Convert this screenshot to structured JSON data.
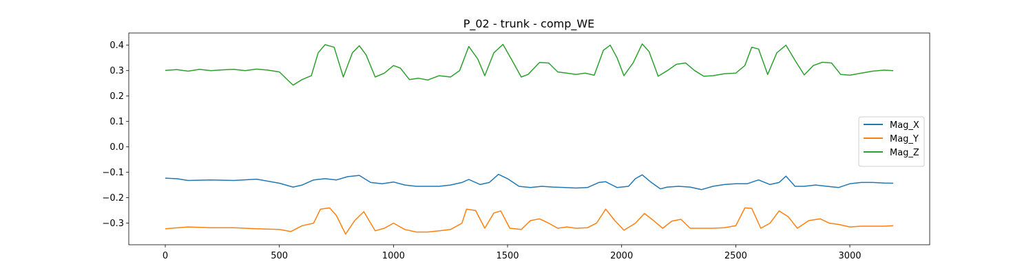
{
  "chart_data": {
    "type": "line",
    "title": "P_02 - trunk - comp_WE",
    "xlabel": "",
    "ylabel": "",
    "xlim": [
      -160,
      3350
    ],
    "ylim": [
      -0.385,
      0.448
    ],
    "x_ticks": [
      0,
      500,
      1000,
      1500,
      2000,
      2500,
      3000
    ],
    "y_ticks": [
      -0.3,
      -0.2,
      -0.1,
      0.0,
      0.1,
      0.2,
      0.3,
      0.4
    ],
    "x_tick_labels": [
      "0",
      "500",
      "1000",
      "1500",
      "2000",
      "2500",
      "3000"
    ],
    "y_tick_labels": [
      "−0.3",
      "−0.2",
      "−0.1",
      "0.0",
      "0.1",
      "0.2",
      "0.3",
      "0.4"
    ],
    "grid": false,
    "legend_position": "center-right",
    "series": [
      {
        "name": "Mag_X",
        "color": "#1f77b4",
        "x": [
          0,
          50,
          100,
          200,
          300,
          400,
          500,
          560,
          600,
          650,
          700,
          750,
          800,
          850,
          900,
          950,
          1000,
          1050,
          1100,
          1150,
          1200,
          1250,
          1300,
          1330,
          1380,
          1420,
          1460,
          1500,
          1550,
          1600,
          1650,
          1700,
          1750,
          1800,
          1850,
          1900,
          1930,
          1980,
          2030,
          2060,
          2090,
          2130,
          2170,
          2200,
          2250,
          2300,
          2350,
          2400,
          2450,
          2500,
          2550,
          2600,
          2650,
          2690,
          2720,
          2760,
          2800,
          2850,
          2900,
          2950,
          3000,
          3050,
          3100,
          3150,
          3190
        ],
        "y": [
          -0.123,
          -0.125,
          -0.132,
          -0.13,
          -0.132,
          -0.127,
          -0.143,
          -0.158,
          -0.15,
          -0.13,
          -0.125,
          -0.13,
          -0.117,
          -0.112,
          -0.14,
          -0.145,
          -0.138,
          -0.15,
          -0.155,
          -0.155,
          -0.155,
          -0.15,
          -0.14,
          -0.128,
          -0.148,
          -0.14,
          -0.108,
          -0.125,
          -0.155,
          -0.16,
          -0.155,
          -0.158,
          -0.16,
          -0.162,
          -0.16,
          -0.14,
          -0.137,
          -0.16,
          -0.155,
          -0.125,
          -0.11,
          -0.14,
          -0.165,
          -0.158,
          -0.155,
          -0.158,
          -0.168,
          -0.155,
          -0.148,
          -0.145,
          -0.145,
          -0.13,
          -0.148,
          -0.14,
          -0.115,
          -0.155,
          -0.155,
          -0.15,
          -0.155,
          -0.16,
          -0.145,
          -0.14,
          -0.14,
          -0.142,
          -0.143
        ]
      },
      {
        "name": "Mag_Y",
        "color": "#ff7f0e",
        "x": [
          0,
          100,
          200,
          300,
          400,
          500,
          550,
          600,
          650,
          680,
          720,
          750,
          790,
          830,
          870,
          920,
          960,
          1000,
          1050,
          1100,
          1150,
          1200,
          1250,
          1300,
          1320,
          1360,
          1400,
          1440,
          1470,
          1510,
          1560,
          1600,
          1640,
          1680,
          1720,
          1760,
          1800,
          1850,
          1890,
          1930,
          1970,
          2010,
          2060,
          2100,
          2140,
          2180,
          2220,
          2260,
          2300,
          2350,
          2400,
          2450,
          2500,
          2540,
          2570,
          2610,
          2650,
          2690,
          2730,
          2770,
          2820,
          2870,
          2910,
          2950,
          3000,
          3050,
          3100,
          3150,
          3190
        ],
        "y": [
          -0.322,
          -0.315,
          -0.318,
          -0.318,
          -0.322,
          -0.325,
          -0.333,
          -0.31,
          -0.3,
          -0.245,
          -0.24,
          -0.27,
          -0.343,
          -0.29,
          -0.255,
          -0.33,
          -0.32,
          -0.3,
          -0.325,
          -0.335,
          -0.335,
          -0.33,
          -0.325,
          -0.3,
          -0.245,
          -0.25,
          -0.32,
          -0.26,
          -0.252,
          -0.32,
          -0.325,
          -0.29,
          -0.283,
          -0.3,
          -0.32,
          -0.315,
          -0.32,
          -0.318,
          -0.3,
          -0.245,
          -0.29,
          -0.328,
          -0.3,
          -0.262,
          -0.29,
          -0.32,
          -0.292,
          -0.285,
          -0.32,
          -0.32,
          -0.32,
          -0.318,
          -0.31,
          -0.24,
          -0.242,
          -0.32,
          -0.3,
          -0.252,
          -0.275,
          -0.32,
          -0.29,
          -0.283,
          -0.3,
          -0.305,
          -0.315,
          -0.312,
          -0.312,
          -0.312,
          -0.31
        ]
      },
      {
        "name": "Mag_Z",
        "color": "#2ca02c",
        "x": [
          0,
          50,
          100,
          150,
          200,
          250,
          300,
          350,
          400,
          450,
          500,
          540,
          560,
          600,
          640,
          670,
          700,
          740,
          780,
          820,
          850,
          880,
          920,
          960,
          1000,
          1030,
          1070,
          1110,
          1150,
          1200,
          1250,
          1290,
          1330,
          1370,
          1400,
          1440,
          1480,
          1520,
          1560,
          1590,
          1640,
          1680,
          1720,
          1760,
          1800,
          1840,
          1880,
          1920,
          1950,
          1980,
          2010,
          2050,
          2090,
          2120,
          2160,
          2200,
          2240,
          2280,
          2320,
          2360,
          2400,
          2450,
          2500,
          2540,
          2570,
          2600,
          2640,
          2680,
          2720,
          2760,
          2800,
          2840,
          2880,
          2920,
          2960,
          3000,
          3050,
          3100,
          3150,
          3190
        ],
        "y": [
          0.301,
          0.304,
          0.298,
          0.305,
          0.3,
          0.303,
          0.305,
          0.3,
          0.306,
          0.302,
          0.295,
          0.26,
          0.243,
          0.265,
          0.28,
          0.37,
          0.402,
          0.392,
          0.275,
          0.37,
          0.398,
          0.362,
          0.275,
          0.29,
          0.32,
          0.31,
          0.265,
          0.27,
          0.263,
          0.28,
          0.275,
          0.3,
          0.395,
          0.345,
          0.28,
          0.37,
          0.403,
          0.34,
          0.275,
          0.285,
          0.332,
          0.33,
          0.295,
          0.29,
          0.285,
          0.29,
          0.282,
          0.38,
          0.4,
          0.35,
          0.28,
          0.33,
          0.405,
          0.375,
          0.278,
          0.3,
          0.325,
          0.33,
          0.3,
          0.278,
          0.28,
          0.288,
          0.29,
          0.32,
          0.392,
          0.385,
          0.285,
          0.37,
          0.4,
          0.34,
          0.283,
          0.32,
          0.333,
          0.33,
          0.285,
          0.282,
          0.29,
          0.298,
          0.302,
          0.3
        ]
      }
    ]
  }
}
